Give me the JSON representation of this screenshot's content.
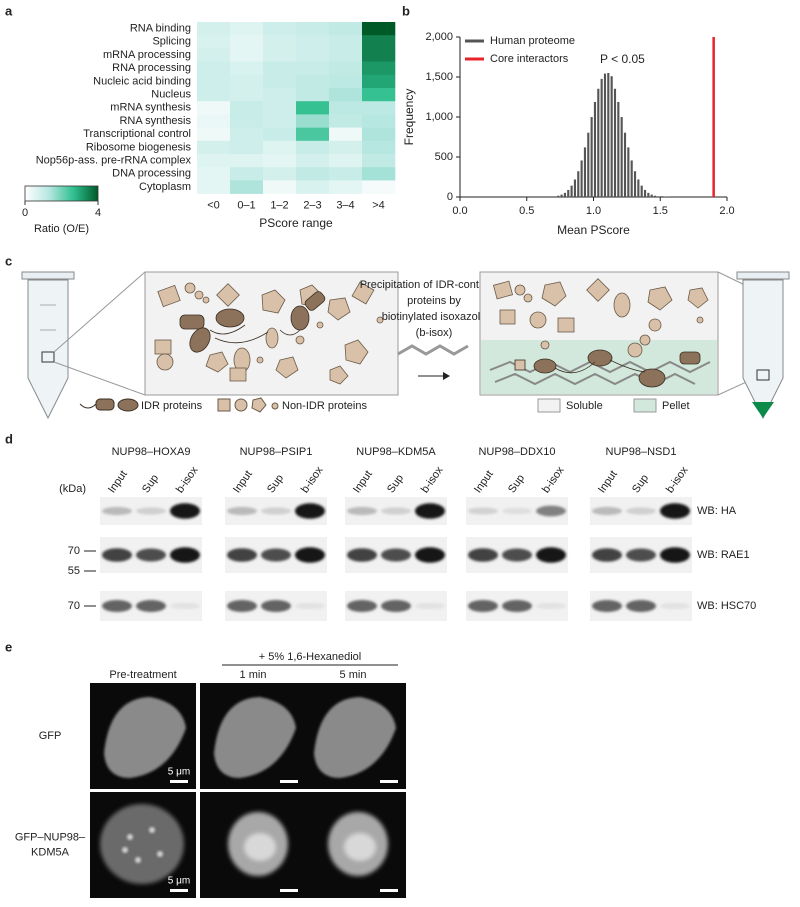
{
  "chart_data": [
    {
      "type": "heatmap",
      "label": "a",
      "rows": [
        "RNA binding",
        "Splicing",
        "mRNA processing",
        "RNA processing",
        "Nucleic acid binding",
        "Nucleus",
        "mRNA synthesis",
        "RNA synthesis",
        "Transcriptional control",
        "Ribosome biogenesis",
        "Nop56p-ass. pre-rRNA complex",
        "DNA processing",
        "Cytoplasm"
      ],
      "columns": [
        "<0",
        "0–1",
        "1–2",
        "2–3",
        "3–4",
        ">4"
      ],
      "values": [
        [
          0.8,
          0.6,
          0.9,
          1.0,
          1.1,
          4.0
        ],
        [
          0.7,
          0.5,
          0.8,
          0.9,
          1.0,
          3.5
        ],
        [
          0.8,
          0.5,
          0.8,
          0.9,
          1.0,
          3.5
        ],
        [
          0.9,
          0.7,
          1.0,
          1.0,
          1.1,
          3.2
        ],
        [
          0.9,
          0.8,
          1.0,
          1.1,
          1.2,
          3.0
        ],
        [
          0.9,
          0.8,
          0.9,
          1.1,
          1.4,
          2.6
        ],
        [
          0.3,
          1.0,
          0.9,
          2.6,
          1.2,
          1.2
        ],
        [
          0.4,
          1.0,
          0.9,
          1.6,
          1.1,
          1.3
        ],
        [
          0.3,
          0.9,
          1.0,
          2.4,
          0.3,
          1.4
        ],
        [
          0.8,
          0.9,
          0.6,
          1.0,
          0.8,
          1.3
        ],
        [
          0.6,
          0.6,
          0.5,
          0.8,
          0.6,
          1.1
        ],
        [
          0.5,
          1.0,
          0.8,
          1.1,
          1.0,
          1.5
        ],
        [
          0.5,
          1.4,
          0.3,
          0.7,
          0.5,
          0.2
        ]
      ],
      "x_label": "PScore range",
      "colorbar_label": "Ratio (O/E)",
      "zlim": [
        0,
        4
      ],
      "zticks": [
        0,
        4
      ],
      "colorscale": [
        "#ffffff",
        "#b5e6e0",
        "#2fbf8f",
        "#005a28"
      ]
    },
    {
      "type": "histogram",
      "label": "b",
      "x_label": "Mean PScore",
      "y_label": "Frequency",
      "xlim": [
        0,
        2
      ],
      "ylim": [
        0,
        2000
      ],
      "xticks": [
        {
          "value": 0,
          "label": "0.0"
        },
        0.5,
        {
          "value": 1,
          "label": "1.0"
        },
        1.5,
        {
          "value": 2,
          "label": "2.0"
        }
      ],
      "yticks": [
        0,
        500,
        {
          "value": 1000,
          "label": "1,000"
        },
        {
          "value": 1500,
          "label": "1,500"
        },
        {
          "value": 2000,
          "label": "2,000"
        }
      ],
      "annotation": "P < 0.05",
      "series": [
        {
          "name": "Human proteome",
          "color": "#555555",
          "bins": [
            0.7,
            0.725,
            0.75,
            0.775,
            0.8,
            0.825,
            0.85,
            0.875,
            0.9,
            0.925,
            0.95,
            0.975,
            1.0,
            1.025,
            1.05,
            1.075,
            1.1,
            1.125,
            1.15,
            1.175,
            1.2,
            1.225,
            1.25,
            1.275,
            1.3,
            1.325,
            1.35,
            1.375,
            1.4,
            1.425,
            1.45,
            1.475,
            1.5,
            1.525,
            1.55,
            1.575,
            1.6
          ],
          "counts": [
            8,
            16,
            30,
            52,
            88,
            142,
            219,
            322,
            457,
            620,
            804,
            999,
            1188,
            1353,
            1476,
            1542,
            1550,
            1510,
            1353,
            1188,
            999,
            804,
            620,
            457,
            322,
            219,
            142,
            88,
            52,
            30,
            16,
            8,
            10,
            6,
            4,
            2
          ]
        },
        {
          "name": "Core interactors",
          "color": "#e8232a",
          "x": 1.9,
          "value": 2000
        }
      ]
    }
  ],
  "diagram": {
    "label": "c",
    "caption_lines": [
      "Precipitation of IDR-containing",
      "proteins by",
      "biotinylated isoxazole",
      "(b-isox)"
    ],
    "idr_legend": "IDR proteins",
    "non_idr_legend": "Non-IDR proteins",
    "soluble": "Soluble",
    "pellet": "Pellet"
  },
  "blots": {
    "label": "d",
    "kda": "(kDa)",
    "groups": [
      "NUP98–HOXA9",
      "NUP98–PSIP1",
      "NUP98–KDM5A",
      "NUP98–DDX10",
      "NUP98–NSD1"
    ],
    "lanes": [
      "Input",
      "Sup",
      "b-isox"
    ],
    "rows": [
      {
        "name": "WB: HA",
        "markers": []
      },
      {
        "name": "WB: RAE1",
        "markers": [
          70,
          55
        ]
      },
      {
        "name": "WB: HSC70",
        "markers": [
          70
        ]
      }
    ]
  },
  "microscopy": {
    "label": "e",
    "treatment": "+ 5% 1,6-Hexanediol",
    "columns": [
      "Pre-treatment",
      "1 min",
      "5 min"
    ],
    "rows": [
      {
        "lines": [
          "GFP"
        ]
      },
      {
        "lines": [
          "GFP–NUP98–",
          "KDM5A"
        ]
      }
    ],
    "scale_bar": "5 μm"
  }
}
